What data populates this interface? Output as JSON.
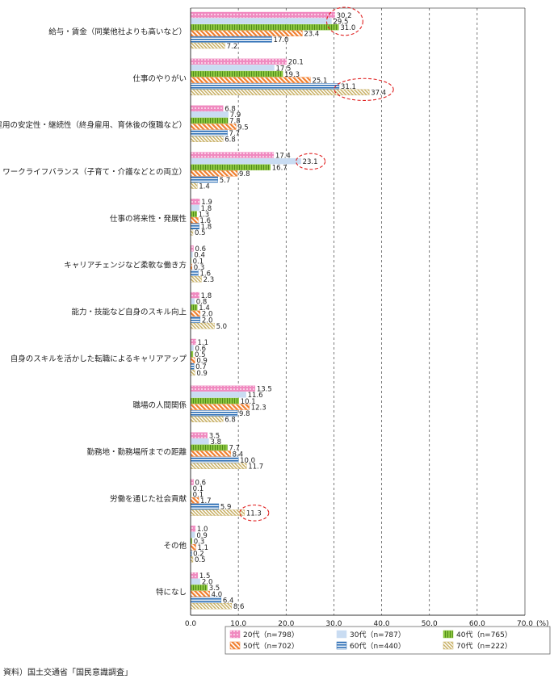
{
  "chart_data": {
    "type": "bar",
    "orientation": "horizontal",
    "categories": [
      "給与・賃金（同業他社よりも高いなど）",
      "仕事のやりがい",
      "雇用の安定性・継続性（終身雇用、育休後の復職など）",
      "ワークライフバランス（子育て・介護などとの両立）",
      "仕事の将来性・発展性",
      "キャリアチェンジなど柔軟な働き方",
      "能力・技能など自身のスキル向上",
      "自身のスキルを活かした転職によるキャリアアップ",
      "職場の人間関係",
      "勤務地・勤務場所までの距離",
      "労働を通じた社会貢献",
      "その他",
      "特になし"
    ],
    "series": [
      {
        "name": "20代（n=798）",
        "color": "#f08ac0",
        "pattern": "dots",
        "values": [
          30.2,
          20.1,
          6.8,
          17.4,
          1.9,
          0.6,
          1.8,
          1.1,
          13.5,
          3.5,
          0.6,
          1.0,
          1.5
        ]
      },
      {
        "name": "30代（n=787）",
        "color": "#c9dcf2",
        "pattern": "solid",
        "values": [
          29.5,
          17.5,
          7.9,
          23.1,
          1.8,
          0.4,
          0.8,
          0.6,
          11.6,
          3.8,
          0.1,
          0.9,
          2.0
        ]
      },
      {
        "name": "40代（n=765）",
        "color": "#8cc63f",
        "pattern": "vlines",
        "values": [
          31.0,
          19.3,
          7.8,
          16.7,
          1.3,
          0.1,
          1.4,
          0.5,
          10.1,
          7.7,
          0.1,
          0.3,
          3.5
        ]
      },
      {
        "name": "50代（n=702）",
        "color": "#f07d2c",
        "pattern": "diagonal",
        "values": [
          23.4,
          25.1,
          9.5,
          9.8,
          1.6,
          0.3,
          2.0,
          0.9,
          12.3,
          8.4,
          1.7,
          1.1,
          4.0
        ]
      },
      {
        "name": "60代（n=440）",
        "color": "#2a6db5",
        "pattern": "hlines",
        "values": [
          17.0,
          31.1,
          7.7,
          5.7,
          1.8,
          1.6,
          2.0,
          0.7,
          9.8,
          10.0,
          5.9,
          0.2,
          6.4
        ]
      },
      {
        "name": "70代（n=222）",
        "color": "#c8b065",
        "pattern": "diagonal2",
        "values": [
          7.2,
          37.4,
          6.8,
          1.4,
          0.5,
          2.3,
          5.0,
          0.9,
          6.8,
          11.7,
          11.3,
          0.5,
          8.6
        ]
      }
    ],
    "xlim": [
      0,
      70
    ],
    "xticks": [
      "0.0",
      "10.0",
      "20.0",
      "30.0",
      "40.0",
      "50.0",
      "60.0",
      "70.0"
    ],
    "xunit": "(%)",
    "grid": "vertical dashed",
    "legend": "bottom",
    "highlights": [
      {
        "category_index": 0,
        "series_indices": [
          0,
          1,
          2
        ]
      },
      {
        "category_index": 1,
        "series_indices": [
          4,
          5
        ]
      },
      {
        "category_index": 3,
        "series_indices": [
          1
        ]
      },
      {
        "category_index": 10,
        "series_indices": [
          5
        ]
      }
    ],
    "highlight_color": "#e02020"
  },
  "source": "資料）国土交通省「国民意識調査」"
}
